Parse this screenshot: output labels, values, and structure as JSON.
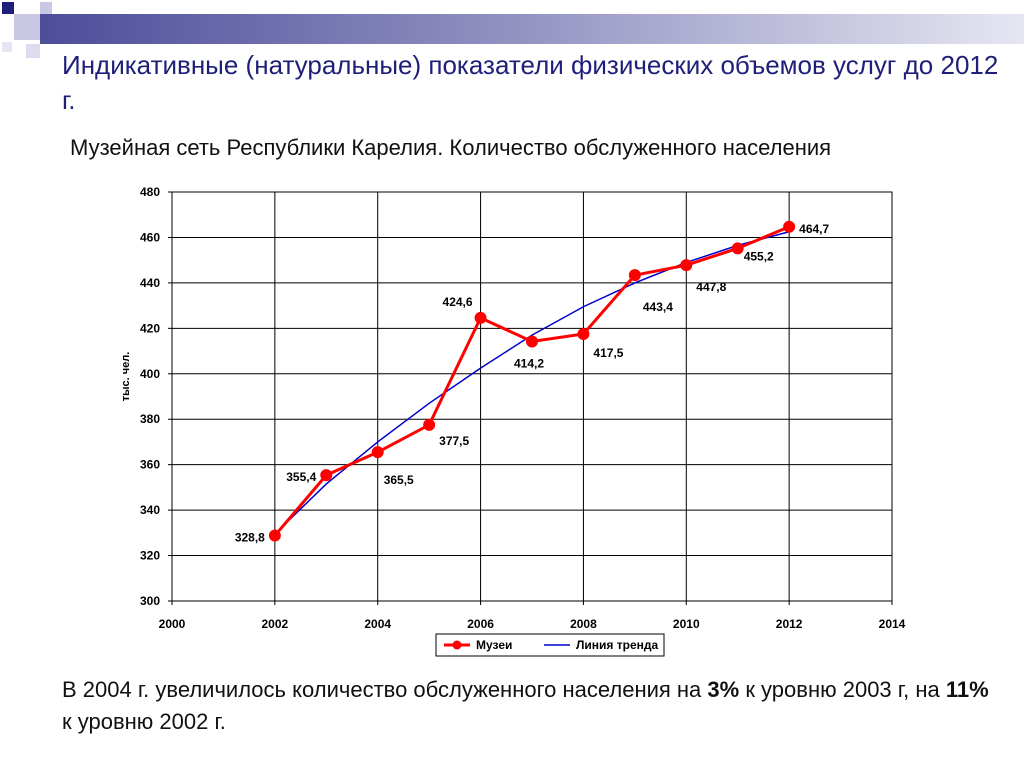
{
  "slide": {
    "title": "Индикативные (натуральные) показатели физических объемов услуг до 2012 г.",
    "subtitle": "Музейная сеть Республики Карелия. Количество обслуженного населения",
    "note": {
      "part1": "В 2004 г. увеличилось количество обслуженного населения на ",
      "bold1": "3%",
      "part2": " к уровню 2003 г, на ",
      "bold2": "11%",
      "part3": " к уровню 2002 г."
    }
  },
  "chart_data": {
    "type": "line",
    "title": "Музейная сеть Республики Карелия. Количество обслуженного населения",
    "xlabel": "",
    "ylabel": "тыс. чел.",
    "xlim": [
      2000,
      2014
    ],
    "ylim": [
      300,
      480
    ],
    "xticks": [
      2000,
      2002,
      2004,
      2006,
      2008,
      2010,
      2012,
      2014
    ],
    "yticks": [
      300,
      320,
      340,
      360,
      380,
      400,
      420,
      440,
      460,
      480
    ],
    "grid": true,
    "legend_position": "bottom",
    "series": [
      {
        "name": "Музеи",
        "color": "#ff0000",
        "x": [
          2002,
          2003,
          2004,
          2005,
          2006,
          2007,
          2008,
          2009,
          2010,
          2011,
          2012
        ],
        "values": [
          328.8,
          355.4,
          365.5,
          377.5,
          424.6,
          414.2,
          417.5,
          443.4,
          447.8,
          455.2,
          464.7
        ],
        "labels": [
          "328,8",
          "355,4",
          "365,5",
          "377,5",
          "424,6",
          "414,2",
          "417,5",
          "443,4",
          "447,8",
          "455,2",
          "464,7"
        ]
      },
      {
        "name": "Линия тренда",
        "color": "#0000cc",
        "x": [
          2002,
          2003,
          2004,
          2005,
          2006,
          2007,
          2008,
          2009,
          2010,
          2011,
          2012
        ],
        "values": [
          329.5,
          351.5,
          370.0,
          387.0,
          402.5,
          417.0,
          429.5,
          440.0,
          449.0,
          456.5,
          462.5
        ]
      }
    ]
  }
}
